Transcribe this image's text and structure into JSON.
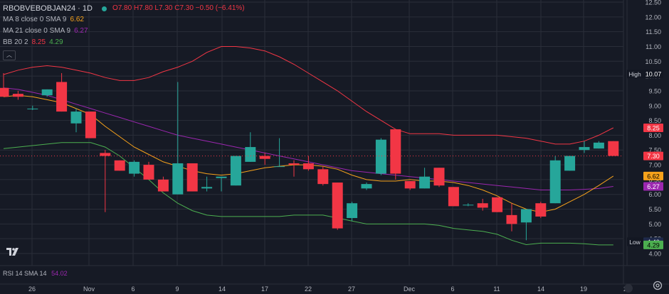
{
  "legend": {
    "symbol": "RBOBVEBOBJAN24 · 1D",
    "ohlc": "O7.80 H7.80 L7.30 C7.30 −0.50 (−6.41%)",
    "ma8_label": "MA 8 close 0 SMA 9",
    "ma8_value": "6.62",
    "ma21_label": "MA 21 close 0 SMA 9",
    "ma21_value": "6.27",
    "bb_label": "BB 20 2",
    "bb_upper": "8.25",
    "bb_lower": "4.29"
  },
  "rsi": {
    "label": "RSI 14 SMA 14",
    "value": "54.02"
  },
  "colors": {
    "up": "#26a69a",
    "down": "#f23645",
    "ma8": "#f7a21b",
    "ma21": "#9c27b0",
    "bb_upper": "#f23645",
    "bb_lower": "#4caf50",
    "bg": "#161a25",
    "grid": "#2a2e39"
  },
  "chart_data": {
    "type": "candlestick",
    "y_ticks": [
      "4.00",
      "4.50",
      "5.00",
      "5.50",
      "6.00",
      "6.50",
      "7.00",
      "7.50",
      "8.00",
      "8.50",
      "9.00",
      "9.50",
      "10.00",
      "10.50",
      "11.00",
      "11.50",
      "12.00",
      "12.50"
    ],
    "ylim": [
      3.6,
      12.6
    ],
    "x_ticks": [
      "26",
      "Nov",
      "6",
      "9",
      "14",
      "17",
      "22",
      "27",
      "Dec",
      "6",
      "11",
      "14",
      "19",
      "22"
    ],
    "candles": [
      {
        "o": 9.6,
        "h": 10.1,
        "l": 9.3,
        "c": 9.3
      },
      {
        "o": 9.4,
        "h": 9.5,
        "l": 9.2,
        "c": 9.3
      },
      {
        "o": 8.9,
        "h": 9.0,
        "l": 8.85,
        "c": 8.9
      },
      {
        "o": 9.35,
        "h": 9.55,
        "l": 9.3,
        "c": 9.55
      },
      {
        "o": 9.8,
        "h": 10.1,
        "l": 8.8,
        "c": 8.8
      },
      {
        "o": 8.4,
        "h": 8.9,
        "l": 8.1,
        "c": 8.8
      },
      {
        "o": 8.8,
        "h": 8.8,
        "l": 7.9,
        "c": 7.9
      },
      {
        "o": 7.4,
        "h": 7.5,
        "l": 5.4,
        "c": 7.3
      },
      {
        "o": 7.15,
        "h": 7.15,
        "l": 6.8,
        "c": 6.8
      },
      {
        "o": 6.7,
        "h": 7.15,
        "l": 6.6,
        "c": 7.1
      },
      {
        "o": 7.0,
        "h": 7.1,
        "l": 6.5,
        "c": 6.5
      },
      {
        "o": 6.5,
        "h": 6.6,
        "l": 6.1,
        "c": 6.1
      },
      {
        "o": 6.0,
        "h": 9.8,
        "l": 6.0,
        "c": 7.05
      },
      {
        "o": 7.05,
        "h": 7.05,
        "l": 6.1,
        "c": 6.1
      },
      {
        "o": 6.2,
        "h": 6.6,
        "l": 6.1,
        "c": 6.25
      },
      {
        "o": 6.55,
        "h": 6.6,
        "l": 6.1,
        "c": 6.6
      },
      {
        "o": 6.3,
        "h": 7.3,
        "l": 6.3,
        "c": 7.3
      },
      {
        "o": 7.1,
        "h": 8.1,
        "l": 7.1,
        "c": 7.6
      },
      {
        "o": 7.3,
        "h": 7.4,
        "l": 7.0,
        "c": 7.2
      },
      {
        "o": 6.95,
        "h": 7.9,
        "l": 6.95,
        "c": 6.95
      },
      {
        "o": 7.05,
        "h": 7.15,
        "l": 6.6,
        "c": 7.0
      },
      {
        "o": 7.05,
        "h": 7.3,
        "l": 6.8,
        "c": 6.85
      },
      {
        "o": 6.85,
        "h": 6.95,
        "l": 6.3,
        "c": 6.35
      },
      {
        "o": 6.4,
        "h": 6.4,
        "l": 4.8,
        "c": 4.85
      },
      {
        "o": 5.2,
        "h": 5.75,
        "l": 5.1,
        "c": 5.7
      },
      {
        "o": 6.2,
        "h": 6.4,
        "l": 6.15,
        "c": 6.35
      },
      {
        "o": 6.7,
        "h": 7.9,
        "l": 6.65,
        "c": 7.85
      },
      {
        "o": 8.2,
        "h": 8.2,
        "l": 6.5,
        "c": 6.7
      },
      {
        "o": 6.45,
        "h": 6.45,
        "l": 6.15,
        "c": 6.2
      },
      {
        "o": 6.2,
        "h": 6.9,
        "l": 6.2,
        "c": 6.6
      },
      {
        "o": 6.9,
        "h": 6.9,
        "l": 6.25,
        "c": 6.3
      },
      {
        "o": 6.25,
        "h": 6.25,
        "l": 5.6,
        "c": 5.6
      },
      {
        "o": 5.65,
        "h": 5.7,
        "l": 5.6,
        "c": 5.65
      },
      {
        "o": 5.7,
        "h": 5.85,
        "l": 5.45,
        "c": 5.55
      },
      {
        "o": 5.9,
        "h": 5.9,
        "l": 5.4,
        "c": 5.4
      },
      {
        "o": 5.3,
        "h": 5.7,
        "l": 4.75,
        "c": 5.0
      },
      {
        "o": 5.05,
        "h": 5.5,
        "l": 4.45,
        "c": 5.5
      },
      {
        "o": 5.7,
        "h": 5.75,
        "l": 5.2,
        "c": 5.25
      },
      {
        "o": 5.7,
        "h": 7.3,
        "l": 5.7,
        "c": 7.15
      },
      {
        "o": 6.8,
        "h": 7.3,
        "l": 6.8,
        "c": 7.3
      },
      {
        "o": 7.5,
        "h": 7.8,
        "l": 7.4,
        "c": 7.6
      },
      {
        "o": 7.55,
        "h": 7.8,
        "l": 7.55,
        "c": 7.75
      },
      {
        "o": 7.8,
        "h": 7.8,
        "l": 7.3,
        "c": 7.3
      }
    ],
    "ma8": [
      9.3,
      9.35,
      9.3,
      9.2,
      9.1,
      8.9,
      8.7,
      8.3,
      7.95,
      7.6,
      7.35,
      7.1,
      6.95,
      6.8,
      6.7,
      6.65,
      6.7,
      6.8,
      6.9,
      6.95,
      7.0,
      7.0,
      6.95,
      6.85,
      6.65,
      6.5,
      6.45,
      6.45,
      6.5,
      6.45,
      6.45,
      6.4,
      6.3,
      6.15,
      5.95,
      5.7,
      5.5,
      5.4,
      5.5,
      5.75,
      6.0,
      6.3,
      6.62
    ],
    "ma21": [
      9.6,
      9.55,
      9.45,
      9.35,
      9.2,
      9.05,
      8.9,
      8.75,
      8.6,
      8.45,
      8.3,
      8.15,
      8.0,
      7.9,
      7.8,
      7.7,
      7.6,
      7.5,
      7.4,
      7.3,
      7.2,
      7.1,
      7.0,
      6.9,
      6.8,
      6.75,
      6.7,
      6.65,
      6.6,
      6.55,
      6.5,
      6.45,
      6.4,
      6.35,
      6.3,
      6.25,
      6.2,
      6.15,
      6.15,
      6.15,
      6.17,
      6.2,
      6.27
    ],
    "bb_upper": [
      10.05,
      10.2,
      10.3,
      10.35,
      10.3,
      10.2,
      10.1,
      9.95,
      9.85,
      9.85,
      9.95,
      10.15,
      10.3,
      10.5,
      10.8,
      11.0,
      11.0,
      10.95,
      10.85,
      10.65,
      10.4,
      10.1,
      9.8,
      9.5,
      9.15,
      8.8,
      8.5,
      8.2,
      8.05,
      8.05,
      8.05,
      8.0,
      8.0,
      8.0,
      8.0,
      7.95,
      7.9,
      7.8,
      7.7,
      7.7,
      7.8,
      8.0,
      8.25
    ],
    "bb_lower": [
      7.55,
      7.6,
      7.65,
      7.7,
      7.75,
      7.75,
      7.75,
      7.6,
      7.3,
      6.9,
      6.5,
      6.05,
      5.7,
      5.45,
      5.3,
      5.25,
      5.25,
      5.25,
      5.25,
      5.25,
      5.3,
      5.3,
      5.3,
      5.2,
      5.1,
      5.0,
      5.0,
      5.0,
      5.0,
      5.0,
      4.95,
      4.85,
      4.8,
      4.75,
      4.65,
      4.45,
      4.3,
      4.35,
      4.35,
      4.35,
      4.33,
      4.29,
      4.29
    ],
    "price_tags": [
      {
        "label": "High",
        "value": "10.07",
        "level": 10.07,
        "kind": "high"
      },
      {
        "label": "",
        "value": "8.25",
        "level": 8.25,
        "kind": "bb_upper"
      },
      {
        "label": "",
        "value": "7.30",
        "level": 7.3,
        "kind": "last"
      },
      {
        "label": "",
        "value": "6.62",
        "level": 6.62,
        "kind": "ma8"
      },
      {
        "label": "",
        "value": "6.27",
        "level": 6.27,
        "kind": "ma21"
      },
      {
        "label": "Low",
        "value": "4.40",
        "level": 4.4,
        "kind": "low"
      },
      {
        "label": "",
        "value": "4.29",
        "level": 4.29,
        "kind": "bb_lower"
      }
    ]
  }
}
